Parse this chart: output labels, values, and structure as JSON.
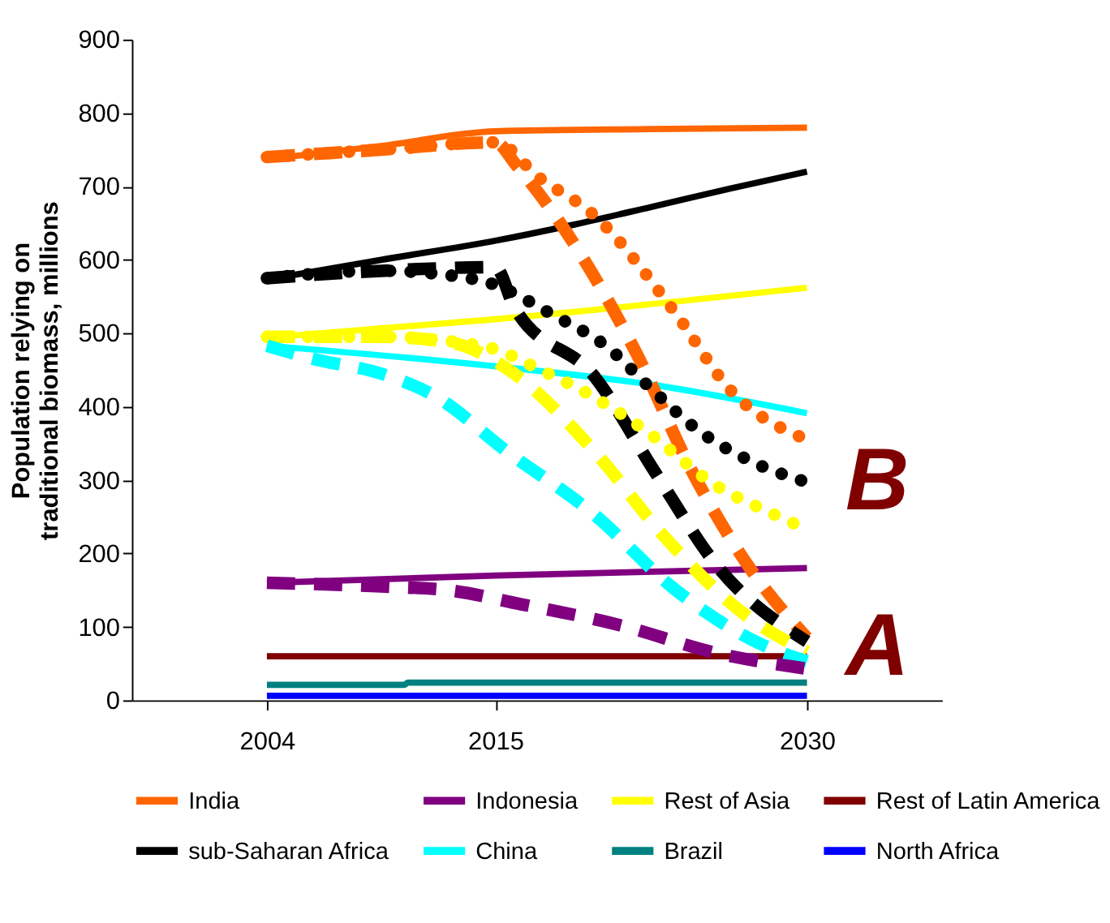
{
  "chart_data": {
    "type": "line",
    "ylabel": "Population relying on\ntraditional biomass, millions",
    "ylim": [
      0,
      900
    ],
    "yticks": [
      0,
      100,
      200,
      300,
      400,
      500,
      600,
      700,
      800,
      900
    ],
    "xlim": [
      1997.5,
      2036.5
    ],
    "xticks": [
      2004,
      2015,
      2030
    ],
    "grid": false,
    "legend": "bottom",
    "marker": "none",
    "annotations": [
      "A",
      "B"
    ],
    "series": [
      {
        "name": "India",
        "color": "#ff6600",
        "line_style": "solid",
        "x": [
          2004,
          2009.5,
          2015,
          2022.5,
          2030
        ],
        "values": [
          737,
          755,
          775,
          778,
          780
        ]
      },
      {
        "name": "Indonesia",
        "color": "#800080",
        "line_style": "solid",
        "x": [
          2004,
          2015,
          2030
        ],
        "values": [
          160,
          170,
          180
        ]
      },
      {
        "name": "Rest of Asia",
        "color": "#ffff00",
        "line_style": "solid",
        "x": [
          2004,
          2015,
          2030
        ],
        "values": [
          494,
          519,
          562
        ]
      },
      {
        "name": "Rest of Latin America",
        "color": "#800000",
        "line_style": "solid",
        "x": [
          2004,
          2015,
          2030
        ],
        "values": [
          60,
          60,
          60
        ]
      },
      {
        "name": "sub-Saharan Africa",
        "color": "#000000",
        "line_style": "solid",
        "x": [
          2004,
          2009.5,
          2015,
          2018.8,
          2022.5,
          2026.3,
          2030
        ],
        "values": [
          573,
          600,
          626,
          648,
          672,
          697,
          720
        ]
      },
      {
        "name": "China",
        "color": "#00ffff",
        "line_style": "solid",
        "x": [
          2004,
          2015,
          2022.5,
          2030
        ],
        "values": [
          483,
          455,
          430,
          391
        ]
      },
      {
        "name": "Brazil",
        "color": "#008080",
        "line_style": "solid",
        "x": [
          2004,
          2010.6,
          2010.8,
          2030
        ],
        "values": [
          21,
          21,
          24,
          24
        ]
      },
      {
        "name": "North Africa",
        "color": "#0000ff",
        "line_style": "solid",
        "x": [
          2004,
          2015,
          2030
        ],
        "values": [
          6,
          6,
          6
        ]
      },
      {
        "color": "#ff6600",
        "line_style": "dashed",
        "x": [
          2004,
          2009.5,
          2015,
          2016,
          2019.4,
          2021.8,
          2024.5,
          2027.2,
          2030
        ],
        "values": [
          740,
          750,
          760,
          729,
          594,
          472,
          310,
          182,
          85
        ]
      },
      {
        "color": "#ff6600",
        "line_style": "dotted",
        "x": [
          2004,
          2009.5,
          2015,
          2017.1,
          2019.7,
          2023.6,
          2026.3,
          2030
        ],
        "values": [
          740,
          750,
          760,
          712,
          662,
          530,
          423,
          355
        ]
      },
      {
        "color": "#000000",
        "line_style": "dashed",
        "x": [
          2004,
          2009.5,
          2015,
          2015.9,
          2019.8,
          2022.7,
          2025.7,
          2030
        ],
        "values": [
          575,
          585,
          590,
          536,
          440,
          310,
          182,
          80
        ]
      },
      {
        "color": "#000000",
        "line_style": "dotted",
        "x": [
          2004,
          2009.5,
          2014.1,
          2017.9,
          2020.4,
          2022.4,
          2024.8,
          2027.2,
          2030
        ],
        "values": [
          575,
          585,
          573,
          523,
          481,
          427,
          367,
          327,
          297
        ]
      },
      {
        "color": "#ffff00",
        "line_style": "dashed",
        "x": [
          2004,
          2009.5,
          2012.9,
          2015.6,
          2019.8,
          2023.1,
          2027,
          2030
        ],
        "values": [
          495,
          495,
          487,
          451,
          338,
          224,
          117,
          66
        ]
      },
      {
        "color": "#ffff00",
        "line_style": "dotted",
        "x": [
          2004,
          2009.5,
          2014.6,
          2017.1,
          2019.8,
          2022.1,
          2025.7,
          2028.2,
          2030
        ],
        "values": [
          495,
          495,
          481,
          451,
          412,
          370,
          291,
          256,
          233
        ]
      },
      {
        "color": "#00ffff",
        "line_style": "dashed",
        "x": [
          2004,
          2006.1,
          2009.6,
          2012,
          2015.6,
          2019.8,
          2023.6,
          2027.9,
          2030
        ],
        "values": [
          483,
          466,
          444,
          416,
          338,
          252,
          152,
          75,
          53
        ]
      },
      {
        "color": "#800080",
        "line_style": "dashed",
        "x": [
          2004,
          2009.5,
          2012.7,
          2016.2,
          2020.9,
          2025.7,
          2030
        ],
        "values": [
          160,
          155,
          150,
          131,
          103,
          64,
          43
        ]
      }
    ]
  }
}
